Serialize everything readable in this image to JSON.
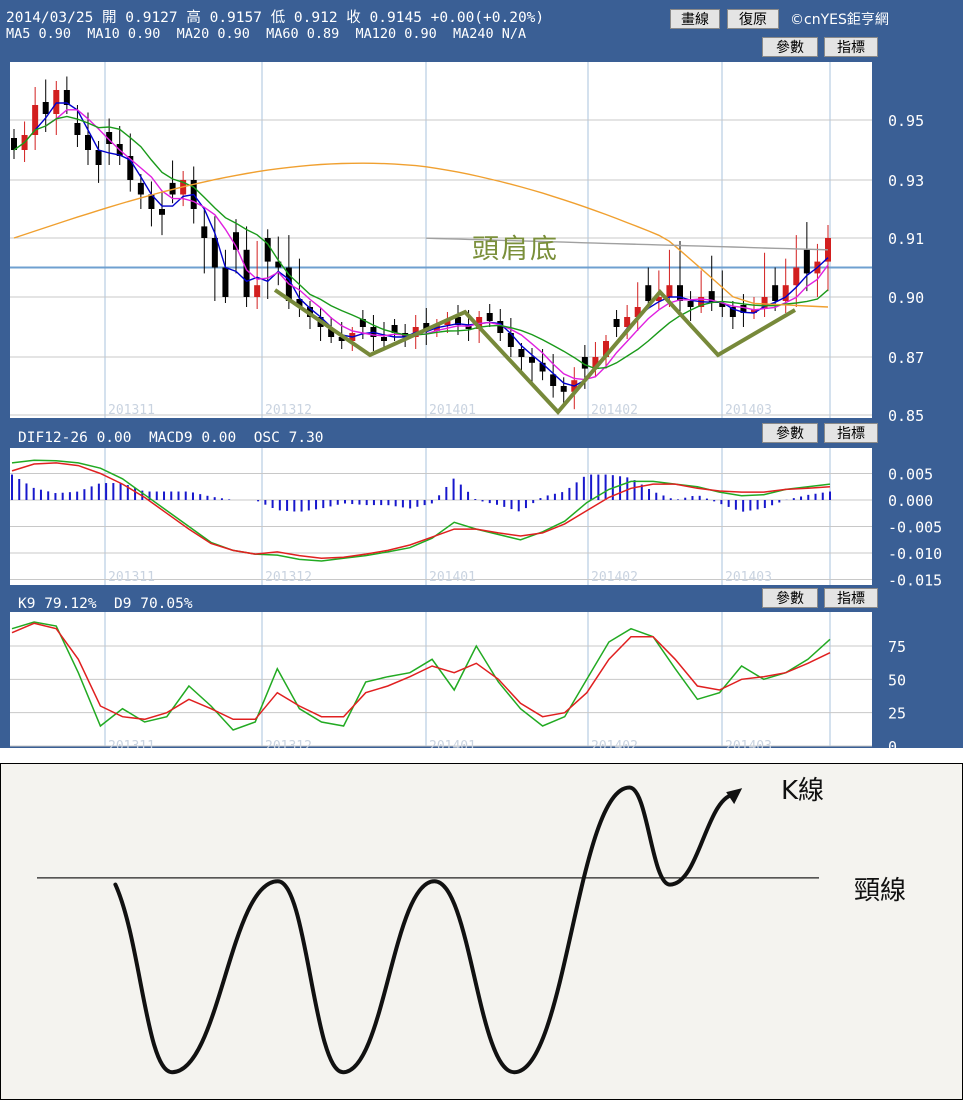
{
  "header": {
    "quote": "2014/03/25 開 0.9127 高 0.9157 低 0.912 收 0.9145 +0.00(+0.20%)",
    "ma_line": "MA5 0.90  MA10 0.90  MA20 0.90  MA60 0.89  MA120 0.90  MA240 N/A",
    "draw_button": "畫線",
    "reset_button": "復原",
    "copyright": "©cnYES鉅亨網"
  },
  "buttons": {
    "params": "參數",
    "indicators": "指標"
  },
  "macd_header": "DIF12-26 0.00  MACD9 0.00  OSC 7.30",
  "kd_header": "K9 79.12%  D9 70.05%",
  "annotation": "頭肩底",
  "colors": {
    "panel_bg": "#ffffff",
    "frame": "#3a5f95",
    "grid_v": "#a9c3dc",
    "grid_h": "#c8c8c8",
    "candle_up": "#d21f1f",
    "candle_down": "#000000",
    "ma5": "#0000cc",
    "ma10": "#e020e0",
    "ma20": "#1a9a1a",
    "ma60": "#f0a030",
    "ma120": "#a0a0a0",
    "neckline": "#6fa0d0",
    "pattern": "#77893a",
    "dif": "#22aa22",
    "macd": "#e02020",
    "osc": "#1818cc"
  },
  "chart_data": [
    {
      "type": "candlestick",
      "title": "",
      "x_labels": [
        "201311",
        "201312",
        "201401",
        "201402",
        "201403"
      ],
      "y_ticks": [
        "0.95",
        "0.93",
        "0.91",
        "0.90",
        "0.87",
        "0.85"
      ],
      "y_tick_values": [
        0.95,
        0.93,
        0.91,
        0.9,
        0.87,
        0.85
      ],
      "neckline": 0.905,
      "ohlc_close_path": [
        0.94,
        0.945,
        0.955,
        0.952,
        0.96,
        0.955,
        0.945,
        0.94,
        0.935,
        0.942,
        0.938,
        0.93,
        0.925,
        0.92,
        0.918,
        0.925,
        0.93,
        0.92,
        0.91,
        0.905,
        0.9,
        0.908,
        0.9,
        0.902,
        0.906,
        0.905,
        0.898,
        0.895,
        0.89,
        0.885,
        0.88,
        0.878,
        0.882,
        0.885,
        0.88,
        0.878,
        0.882,
        0.88,
        0.885,
        0.883,
        0.886,
        0.888,
        0.886,
        0.884,
        0.89,
        0.888,
        0.882,
        0.875,
        0.87,
        0.868,
        0.865,
        0.86,
        0.858,
        0.862,
        0.866,
        0.87,
        0.878,
        0.885,
        0.89,
        0.895,
        0.898,
        0.9,
        0.902,
        0.898,
        0.895,
        0.9,
        0.897,
        0.895,
        0.89,
        0.892,
        0.894,
        0.9,
        0.898,
        0.902,
        0.905,
        0.904,
        0.906,
        0.91
      ],
      "ma_lines": [
        "MA5",
        "MA10",
        "MA20",
        "MA60",
        "MA120"
      ],
      "annotation": "頭肩底"
    },
    {
      "type": "line",
      "title": "",
      "series_labels": [
        "DIF12-26",
        "MACD9",
        "OSC"
      ],
      "y_ticks": [
        "0.005",
        "0.000",
        "-0.005",
        "-0.010",
        "-0.015"
      ],
      "y_tick_values": [
        0.005,
        0.0,
        -0.005,
        -0.01,
        -0.015
      ],
      "ylim": [
        -0.015,
        0.0075
      ],
      "dif": [
        0.007,
        0.0075,
        0.0074,
        0.007,
        0.006,
        0.004,
        0.001,
        -0.002,
        -0.005,
        -0.008,
        -0.0095,
        -0.0102,
        -0.0104,
        -0.0112,
        -0.0115,
        -0.011,
        -0.0105,
        -0.0098,
        -0.009,
        -0.0072,
        -0.0042,
        -0.0055,
        -0.0065,
        -0.0075,
        -0.006,
        -0.004,
        -0.0005,
        0.002,
        0.0035,
        0.0035,
        0.003,
        0.0025,
        0.0015,
        0.0008,
        0.001,
        0.002,
        0.0025,
        0.003
      ],
      "macd": [
        0.0055,
        0.0068,
        0.007,
        0.0065,
        0.005,
        0.003,
        0.0005,
        -0.0025,
        -0.0055,
        -0.0082,
        -0.0095,
        -0.0102,
        -0.0098,
        -0.0105,
        -0.011,
        -0.0108,
        -0.0102,
        -0.0095,
        -0.0085,
        -0.007,
        -0.0055,
        -0.0055,
        -0.0062,
        -0.0068,
        -0.0062,
        -0.0045,
        -0.002,
        0.0005,
        0.0022,
        0.003,
        0.003,
        0.0022,
        0.0017,
        0.0015,
        0.0015,
        0.002,
        0.0022,
        0.0025
      ],
      "osc_note": "histogram bars around 0.000"
    },
    {
      "type": "line",
      "title": "",
      "series_labels": [
        "K9",
        "D9"
      ],
      "y_ticks": [
        "75",
        "50",
        "25",
        "0"
      ],
      "y_tick_values": [
        75,
        50,
        25,
        0
      ],
      "ylim": [
        0,
        100
      ],
      "k": [
        88,
        93,
        90,
        55,
        15,
        28,
        18,
        22,
        45,
        30,
        12,
        18,
        58,
        28,
        18,
        15,
        48,
        52,
        55,
        65,
        42,
        75,
        48,
        28,
        15,
        22,
        50,
        78,
        88,
        82,
        58,
        35,
        40,
        60,
        50,
        55,
        65,
        80
      ],
      "d": [
        85,
        92,
        88,
        65,
        30,
        22,
        20,
        25,
        35,
        28,
        20,
        20,
        40,
        30,
        22,
        22,
        40,
        45,
        52,
        60,
        55,
        62,
        50,
        32,
        22,
        25,
        40,
        65,
        82,
        82,
        65,
        45,
        42,
        50,
        52,
        55,
        62,
        70
      ]
    },
    {
      "type": "diagram",
      "title": "",
      "curve_points": [
        [
          0.119,
          0.36
        ],
        [
          0.178,
          0.92
        ],
        [
          0.288,
          0.35
        ],
        [
          0.356,
          0.92
        ],
        [
          0.451,
          0.35
        ],
        [
          0.534,
          0.92
        ],
        [
          0.654,
          0.07
        ],
        [
          0.696,
          0.36
        ],
        [
          0.765,
          0.09
        ]
      ],
      "neckline_y": 0.34,
      "labels": {
        "k_line": "K線",
        "neck_line": "頸線"
      }
    }
  ]
}
